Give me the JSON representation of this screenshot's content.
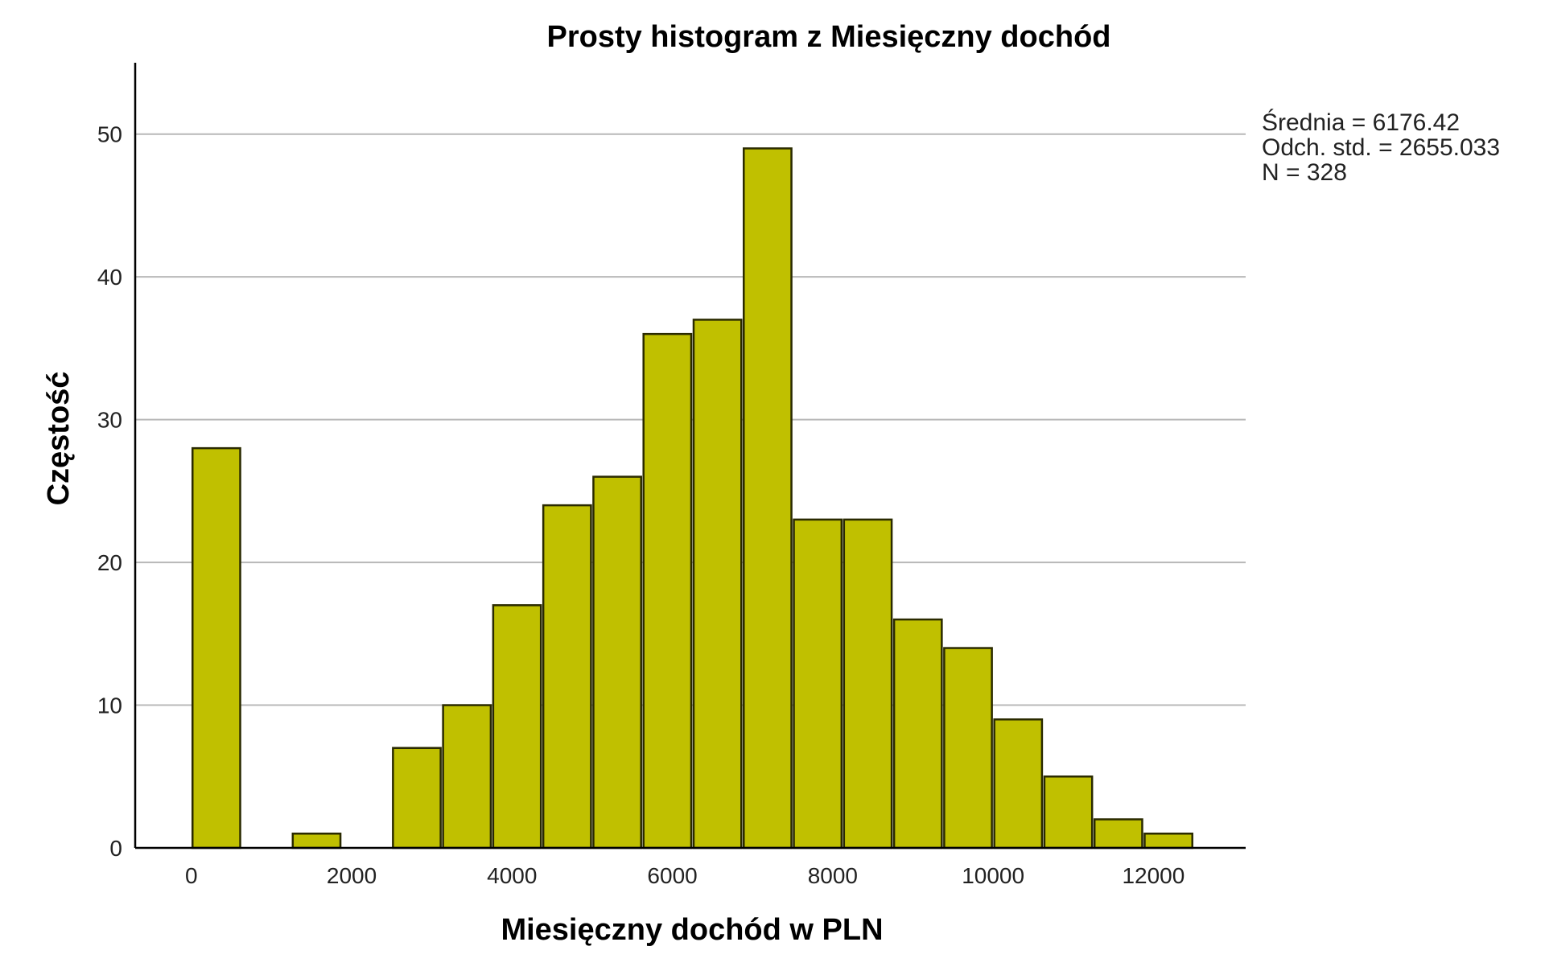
{
  "chart_data": {
    "type": "bar",
    "title": "Prosty histogram z Miesięczny dochód",
    "xlabel": "Miesięczny dochód w PLN",
    "ylabel": "Częstość",
    "bin_width": 625,
    "bins": [
      {
        "x": 0,
        "count": 28
      },
      {
        "x": 625,
        "count": 0
      },
      {
        "x": 1250,
        "count": 1
      },
      {
        "x": 1875,
        "count": 0
      },
      {
        "x": 2500,
        "count": 7
      },
      {
        "x": 3125,
        "count": 10
      },
      {
        "x": 3750,
        "count": 17
      },
      {
        "x": 4375,
        "count": 24
      },
      {
        "x": 5000,
        "count": 26
      },
      {
        "x": 5625,
        "count": 36
      },
      {
        "x": 6250,
        "count": 37
      },
      {
        "x": 6875,
        "count": 49
      },
      {
        "x": 7500,
        "count": 23
      },
      {
        "x": 8125,
        "count": 23
      },
      {
        "x": 8750,
        "count": 16
      },
      {
        "x": 9375,
        "count": 14
      },
      {
        "x": 10000,
        "count": 9
      },
      {
        "x": 10625,
        "count": 5
      },
      {
        "x": 11250,
        "count": 2
      },
      {
        "x": 11875,
        "count": 1
      }
    ],
    "xlim": [
      -700,
      13150
    ],
    "ylim": [
      0,
      55
    ],
    "x_ticks": [
      0,
      2000,
      4000,
      6000,
      8000,
      10000,
      12000
    ],
    "y_ticks": [
      0,
      10,
      20,
      30,
      40,
      50
    ],
    "grid": "horizontal",
    "bar_color": "#c0c000",
    "stats": [
      "Średnia = 6176.42",
      "Odch. std. = 2655.033",
      "N = 328"
    ]
  }
}
